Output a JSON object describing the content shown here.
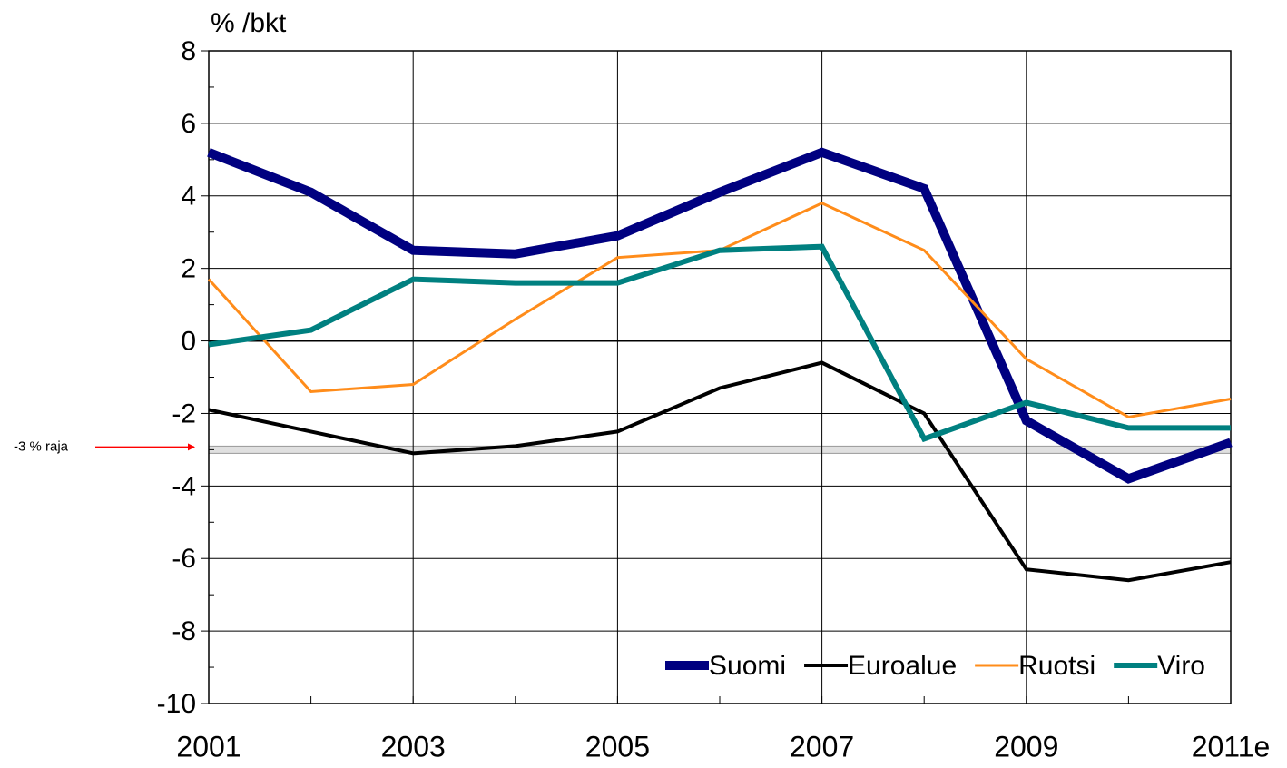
{
  "chart_data": {
    "type": "line",
    "y_axis_label": "% /bkt",
    "categories": [
      "2001",
      null,
      "2003",
      null,
      "2005",
      null,
      "2007",
      null,
      "2009",
      null,
      "2011e"
    ],
    "series": [
      {
        "name": "Suomi",
        "color": "#000080",
        "line_width": 10,
        "values": [
          5.2,
          4.1,
          2.5,
          2.4,
          2.9,
          4.1,
          5.2,
          4.2,
          -2.2,
          -3.8,
          -2.8
        ]
      },
      {
        "name": "Euroalue",
        "color": "#000000",
        "line_width": 4,
        "values": [
          -1.9,
          -2.5,
          -3.1,
          -2.9,
          -2.5,
          -1.3,
          -0.6,
          -2.0,
          -6.3,
          -6.6,
          -6.1
        ]
      },
      {
        "name": "Ruotsi",
        "color": "#ff8c1a",
        "line_width": 3,
        "values": [
          1.7,
          -1.4,
          -1.2,
          0.6,
          2.3,
          2.5,
          3.8,
          2.5,
          -0.5,
          -2.1,
          -1.6
        ]
      },
      {
        "name": "Viro",
        "color": "#008080",
        "line_width": 6,
        "values": [
          -0.1,
          0.3,
          1.7,
          1.6,
          1.6,
          2.5,
          2.6,
          -2.7,
          -1.7,
          -2.4,
          -2.4
        ]
      }
    ],
    "ylim": [
      -10,
      8
    ],
    "yticks": [
      -10,
      -8,
      -6,
      -4,
      -2,
      0,
      2,
      4,
      6,
      8
    ],
    "yminor_ticks": [
      -9,
      -7,
      -5,
      -3,
      -1,
      1,
      3,
      5,
      7
    ],
    "grid": true,
    "legend": "lower right",
    "threshold": {
      "value": -3,
      "label": "-3 % raja",
      "color": "#ff0000"
    }
  }
}
